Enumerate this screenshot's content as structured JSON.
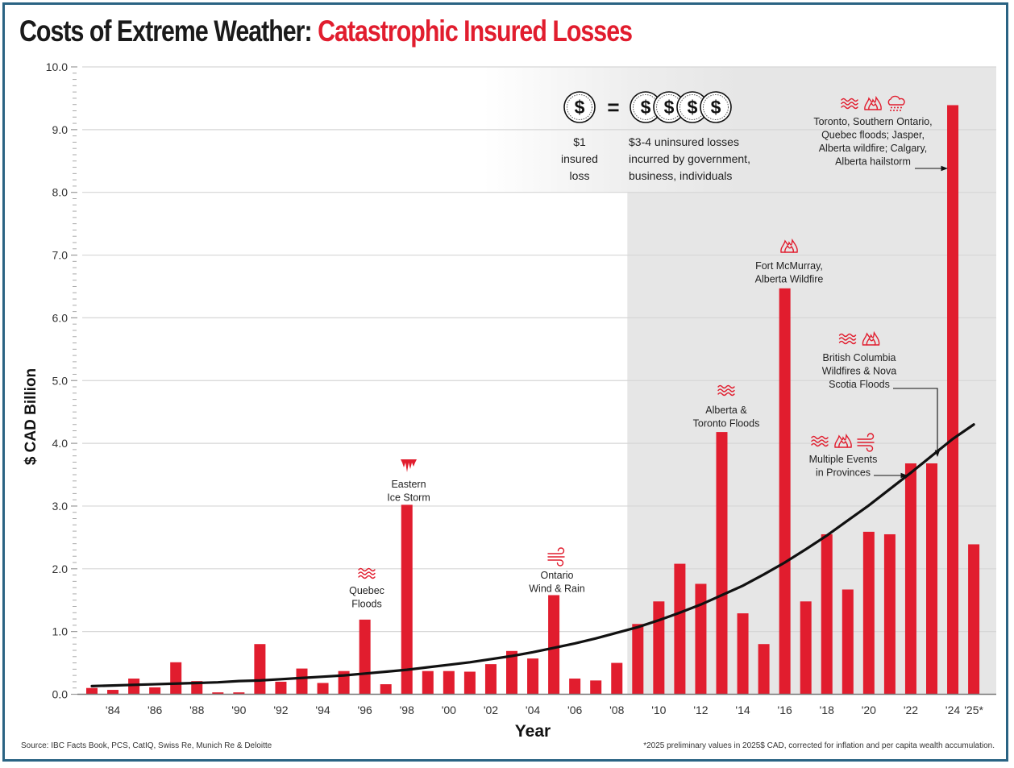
{
  "chart_data": {
    "type": "bar",
    "title_part1": "Costs of Extreme Weather:",
    "title_part2": "Catastrophic Insured Losses",
    "xlabel": "Year",
    "ylabel": "$ CAD Billion",
    "ylim": [
      0,
      10
    ],
    "yticks": [
      "0.0",
      "1.0",
      "2.0",
      "3.0",
      "4.0",
      "5.0",
      "6.0",
      "7.0",
      "8.0",
      "9.0",
      "10.0"
    ],
    "minor_tick_step": 0.1,
    "grid": true,
    "categories": [
      "1983",
      "1984",
      "1985",
      "1986",
      "1987",
      "1988",
      "1989",
      "1990",
      "1991",
      "1992",
      "1993",
      "1994",
      "1995",
      "1996",
      "1997",
      "1998",
      "1999",
      "2000",
      "2001",
      "2002",
      "2003",
      "2004",
      "2005",
      "2006",
      "2007",
      "2008",
      "2009",
      "2010",
      "2011",
      "2012",
      "2013",
      "2014",
      "2015",
      "2016",
      "2017",
      "2018",
      "2019",
      "2020",
      "2021",
      "2022",
      "2023",
      "2024",
      "2025*"
    ],
    "xtick_labels": [
      {
        "year": "1984",
        "label": "'84"
      },
      {
        "year": "1986",
        "label": "'86"
      },
      {
        "year": "1988",
        "label": "'88"
      },
      {
        "year": "1990",
        "label": "'90"
      },
      {
        "year": "1992",
        "label": "'92"
      },
      {
        "year": "1994",
        "label": "'94"
      },
      {
        "year": "1996",
        "label": "'96"
      },
      {
        "year": "1998",
        "label": "'98"
      },
      {
        "year": "2000",
        "label": "'00"
      },
      {
        "year": "2002",
        "label": "'02"
      },
      {
        "year": "2004",
        "label": "'04"
      },
      {
        "year": "2006",
        "label": "'06"
      },
      {
        "year": "2008",
        "label": "'08"
      },
      {
        "year": "2010",
        "label": "'10"
      },
      {
        "year": "2012",
        "label": "'12"
      },
      {
        "year": "2014",
        "label": "'14"
      },
      {
        "year": "2016",
        "label": "'16"
      },
      {
        "year": "2018",
        "label": "'18"
      },
      {
        "year": "2020",
        "label": "'20"
      },
      {
        "year": "2022",
        "label": "'22"
      },
      {
        "year": "2024",
        "label": "'24"
      },
      {
        "year": "2025*",
        "label": "'25*"
      }
    ],
    "series": [
      {
        "name": "Catastrophic insured losses",
        "color": "#e11d2e",
        "values": [
          0.1,
          0.07,
          0.25,
          0.11,
          0.51,
          0.21,
          0.03,
          0.03,
          0.8,
          0.2,
          0.41,
          0.18,
          0.37,
          1.19,
          0.16,
          3.02,
          0.37,
          0.37,
          0.36,
          0.48,
          0.69,
          0.57,
          1.58,
          0.25,
          0.22,
          0.5,
          1.12,
          1.48,
          2.08,
          1.76,
          4.18,
          1.29,
          0.8,
          6.47,
          1.48,
          2.55,
          1.67,
          2.59,
          2.55,
          3.68,
          3.68,
          9.39,
          2.39
        ]
      },
      {
        "name": "Trend",
        "type": "line",
        "color": "#111111",
        "values": [
          0.13,
          0.14,
          0.15,
          0.16,
          0.17,
          0.18,
          0.19,
          0.21,
          0.22,
          0.24,
          0.26,
          0.28,
          0.3,
          0.33,
          0.36,
          0.39,
          0.43,
          0.47,
          0.51,
          0.56,
          0.61,
          0.67,
          0.74,
          0.81,
          0.89,
          0.98,
          1.07,
          1.18,
          1.3,
          1.43,
          1.58,
          1.73,
          1.91,
          2.1,
          2.31,
          2.53,
          2.77,
          3.01,
          3.27,
          3.53,
          3.8,
          4.07,
          4.3
        ]
      }
    ],
    "shaded_region_from": "2009",
    "annotations": [
      {
        "year": "1996",
        "lines": [
          "Quebec",
          "Floods"
        ],
        "icons": [
          "flood-icon"
        ]
      },
      {
        "year": "1998",
        "lines": [
          "Eastern",
          "Ice Storm"
        ],
        "icons": [
          "ice-storm-icon"
        ]
      },
      {
        "year": "2005",
        "lines": [
          "Ontario",
          "Wind & Rain"
        ],
        "icons": [
          "wind-icon"
        ]
      },
      {
        "year": "2013",
        "lines": [
          "Alberta &",
          "Toronto Floods"
        ],
        "icons": [
          "flood-icon"
        ]
      },
      {
        "year": "2016",
        "lines": [
          "Fort McMurray,",
          "Alberta Wildfire"
        ],
        "icons": [
          "wildfire-icon"
        ]
      },
      {
        "year": "2023",
        "lines": [
          "British Columbia",
          "Wildfires & Nova",
          "Scotia Floods"
        ],
        "icons": [
          "flood-icon",
          "wildfire-icon"
        ],
        "arrow": "down"
      },
      {
        "year": "2022",
        "lines": [
          "Multiple Events",
          "in Provinces"
        ],
        "icons": [
          "flood-icon",
          "wildfire-icon",
          "wind-icon"
        ],
        "arrow": "right"
      },
      {
        "year": "2024",
        "lines": [
          "Toronto, Southern Ontario,",
          "Quebec floods; Jasper,",
          "Alberta wildfire; Calgary,",
          "Alberta hailstorm"
        ],
        "icons": [
          "flood-icon",
          "wildfire-icon",
          "hailstorm-icon"
        ],
        "arrow": "right"
      }
    ],
    "legend": {
      "left_symbol": "$",
      "equals": "=",
      "right_symbol": "$",
      "right_count": 4,
      "left_lines": [
        "$1",
        "insured",
        "loss"
      ],
      "right_lines": [
        "$3-4 uninsured losses",
        "incurred by government,",
        "business, individuals"
      ]
    }
  },
  "footer": {
    "source": "Source: IBC Facts Book, PCS, CatIQ, Swiss Re, Munich Re & Deloitte",
    "note": "*2025 preliminary values in 2025$ CAD, corrected for inflation and per capita wealth accumulation."
  },
  "colors": {
    "accent": "#e11d2e",
    "frame": "#2a6383",
    "shade": "#e6e6e6"
  }
}
